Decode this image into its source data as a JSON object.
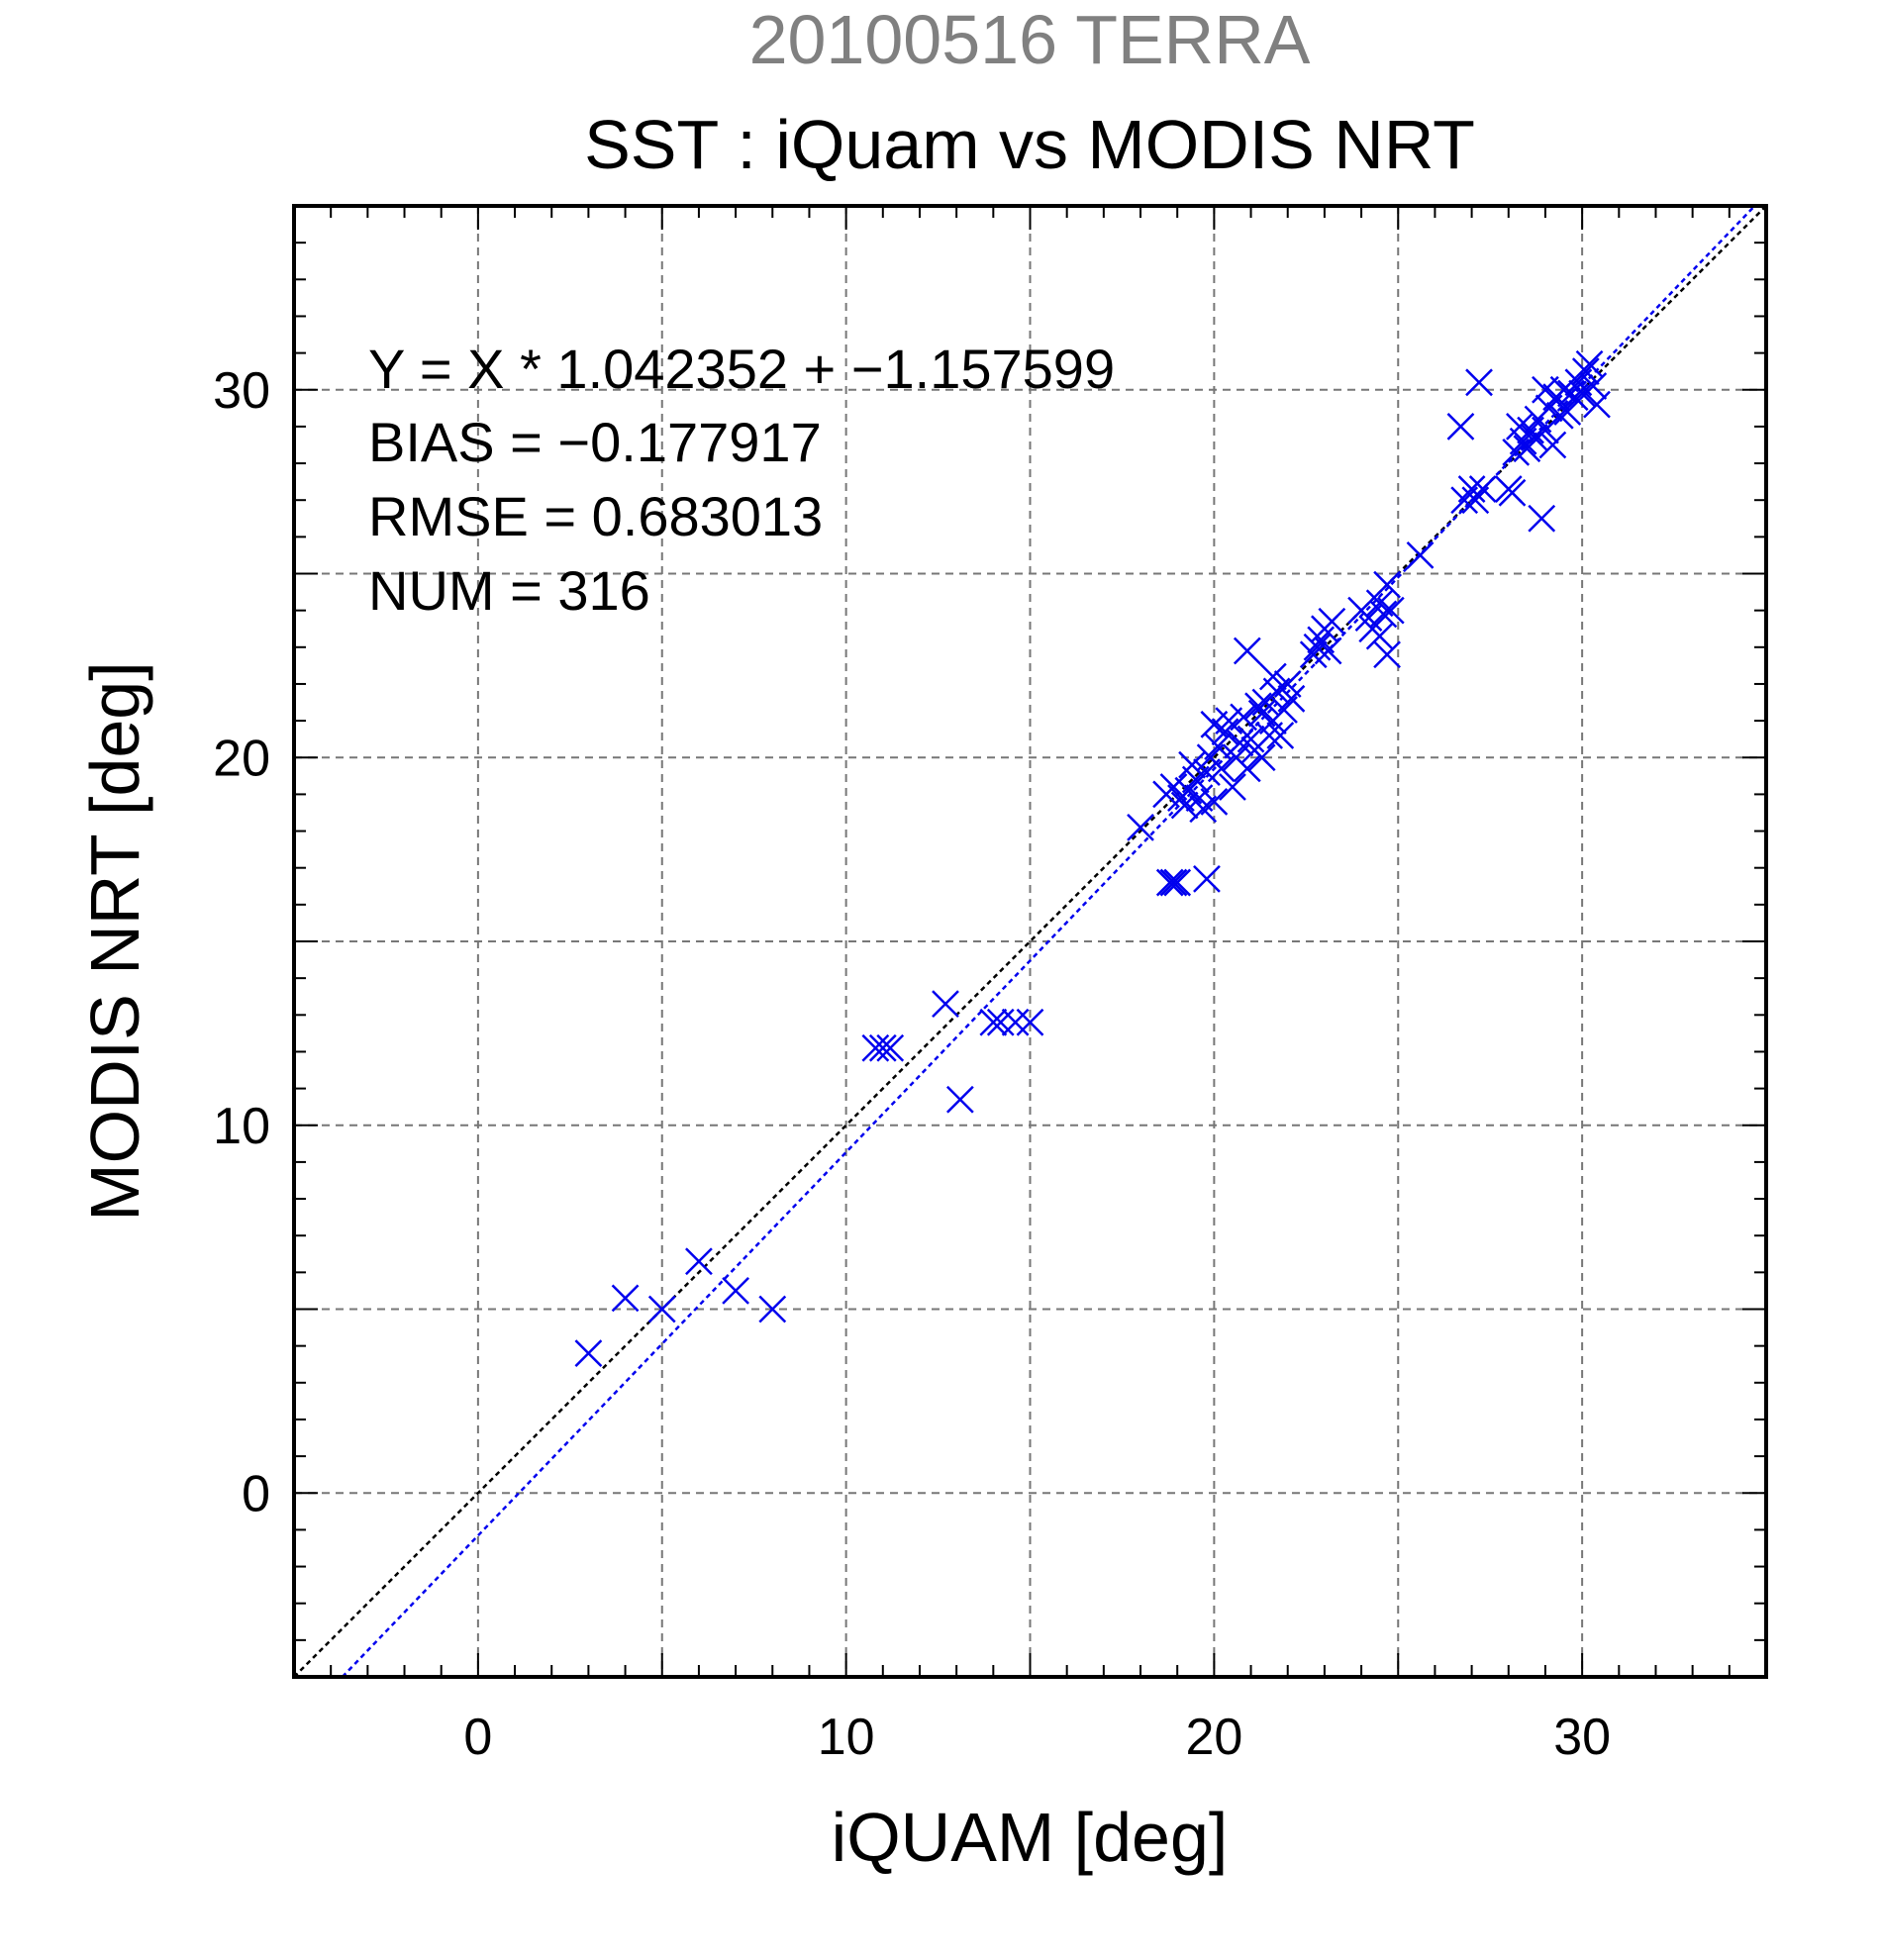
{
  "chart_data": {
    "type": "scatter",
    "title_top": "20100516 TERRA",
    "title": "SST : iQuam vs MODIS NRT",
    "xlabel": "iQUAM [deg]",
    "ylabel": "MODIS NRT [deg]",
    "xlim": [
      -5,
      35
    ],
    "ylim": [
      -5,
      35
    ],
    "xticks": [
      0,
      10,
      20,
      30
    ],
    "yticks": [
      0,
      10,
      20,
      30
    ],
    "grid": true,
    "stats": [
      "Y = X * 1.042352 + −1.157599",
      "BIAS = −0.177917",
      "RMSE = 0.683013",
      "NUM = 316"
    ],
    "reference_line": {
      "slope": 1,
      "intercept": 0,
      "color": "#000000"
    },
    "regression_line": {
      "slope": 1.042352,
      "intercept": -1.157599,
      "color": "#0000ee"
    },
    "marker_color": "#0000ee",
    "points": [
      [
        3,
        3.8
      ],
      [
        4,
        5.3
      ],
      [
        5,
        5.0
      ],
      [
        6,
        6.3
      ],
      [
        7,
        5.5
      ],
      [
        8,
        5.0
      ],
      [
        10.8,
        12.1
      ],
      [
        11.0,
        12.1
      ],
      [
        11.2,
        12.1
      ],
      [
        12.7,
        13.3
      ],
      [
        13.1,
        10.7
      ],
      [
        14.0,
        12.8
      ],
      [
        14.2,
        12.8
      ],
      [
        14.6,
        12.8
      ],
      [
        15.0,
        12.8
      ],
      [
        18.0,
        18.1
      ],
      [
        18.8,
        16.6
      ],
      [
        18.9,
        16.6
      ],
      [
        19.0,
        16.6
      ],
      [
        19.8,
        16.7
      ],
      [
        18.7,
        19.0
      ],
      [
        18.9,
        19.2
      ],
      [
        19.1,
        18.9
      ],
      [
        19.3,
        19.1
      ],
      [
        19.5,
        19.4
      ],
      [
        19.2,
        18.7
      ],
      [
        19.6,
        18.9
      ],
      [
        19.8,
        19.6
      ],
      [
        19.7,
        18.6
      ],
      [
        20.0,
        18.8
      ],
      [
        19.4,
        19.8
      ],
      [
        19.9,
        20.0
      ],
      [
        20.1,
        20.3
      ],
      [
        20.3,
        20.7
      ],
      [
        20.2,
        19.7
      ],
      [
        20.5,
        19.2
      ],
      [
        20.4,
        21.0
      ],
      [
        20.0,
        20.9
      ],
      [
        20.7,
        20.4
      ],
      [
        20.6,
        20.0
      ],
      [
        20.9,
        19.7
      ],
      [
        21.0,
        20.5
      ],
      [
        20.8,
        21.1
      ],
      [
        20.9,
        22.9
      ],
      [
        21.1,
        20.2
      ],
      [
        21.3,
        20.0
      ],
      [
        21.5,
        20.6
      ],
      [
        21.4,
        21.5
      ],
      [
        21.6,
        21.0
      ],
      [
        21.7,
        21.8
      ],
      [
        21.8,
        20.6
      ],
      [
        21.9,
        21.3
      ],
      [
        22.0,
        22.0
      ],
      [
        21.6,
        22.2
      ],
      [
        22.1,
        21.6
      ],
      [
        21.2,
        21.4
      ],
      [
        21.3,
        21.2
      ],
      [
        22.7,
        22.8
      ],
      [
        22.8,
        23.0
      ],
      [
        22.9,
        23.2
      ],
      [
        23.0,
        23.5
      ],
      [
        23.1,
        22.9
      ],
      [
        23.2,
        23.7
      ],
      [
        24.0,
        24.0
      ],
      [
        24.2,
        23.8
      ],
      [
        24.3,
        23.5
      ],
      [
        24.5,
        24.2
      ],
      [
        24.6,
        23.9
      ],
      [
        24.7,
        24.7
      ],
      [
        24.8,
        24.0
      ],
      [
        24.7,
        22.8
      ],
      [
        24.5,
        23.3
      ],
      [
        25.6,
        25.5
      ],
      [
        26.8,
        27.0
      ],
      [
        27.0,
        27.3
      ],
      [
        27.1,
        27.0
      ],
      [
        27.3,
        27.3
      ],
      [
        26.7,
        29.0
      ],
      [
        27.2,
        30.2
      ],
      [
        28.0,
        27.3
      ],
      [
        28.1,
        27.2
      ],
      [
        28.4,
        28.6
      ],
      [
        28.3,
        29.0
      ],
      [
        28.2,
        28.3
      ],
      [
        28.6,
        28.9
      ],
      [
        28.7,
        28.7
      ],
      [
        28.8,
        29.2
      ],
      [
        29.0,
        28.9
      ],
      [
        28.9,
        26.5
      ],
      [
        29.1,
        29.5
      ],
      [
        29.3,
        29.8
      ],
      [
        29.5,
        30.0
      ],
      [
        29.7,
        29.9
      ],
      [
        29.9,
        30.2
      ],
      [
        30.0,
        29.9
      ],
      [
        30.1,
        30.5
      ],
      [
        30.3,
        30.1
      ],
      [
        30.4,
        29.6
      ],
      [
        30.2,
        30.7
      ],
      [
        29.2,
        28.5
      ],
      [
        29.4,
        29.3
      ],
      [
        29.6,
        29.4
      ],
      [
        29.8,
        29.8
      ],
      [
        28.5,
        28.4
      ],
      [
        29.0,
        30.0
      ]
    ]
  }
}
